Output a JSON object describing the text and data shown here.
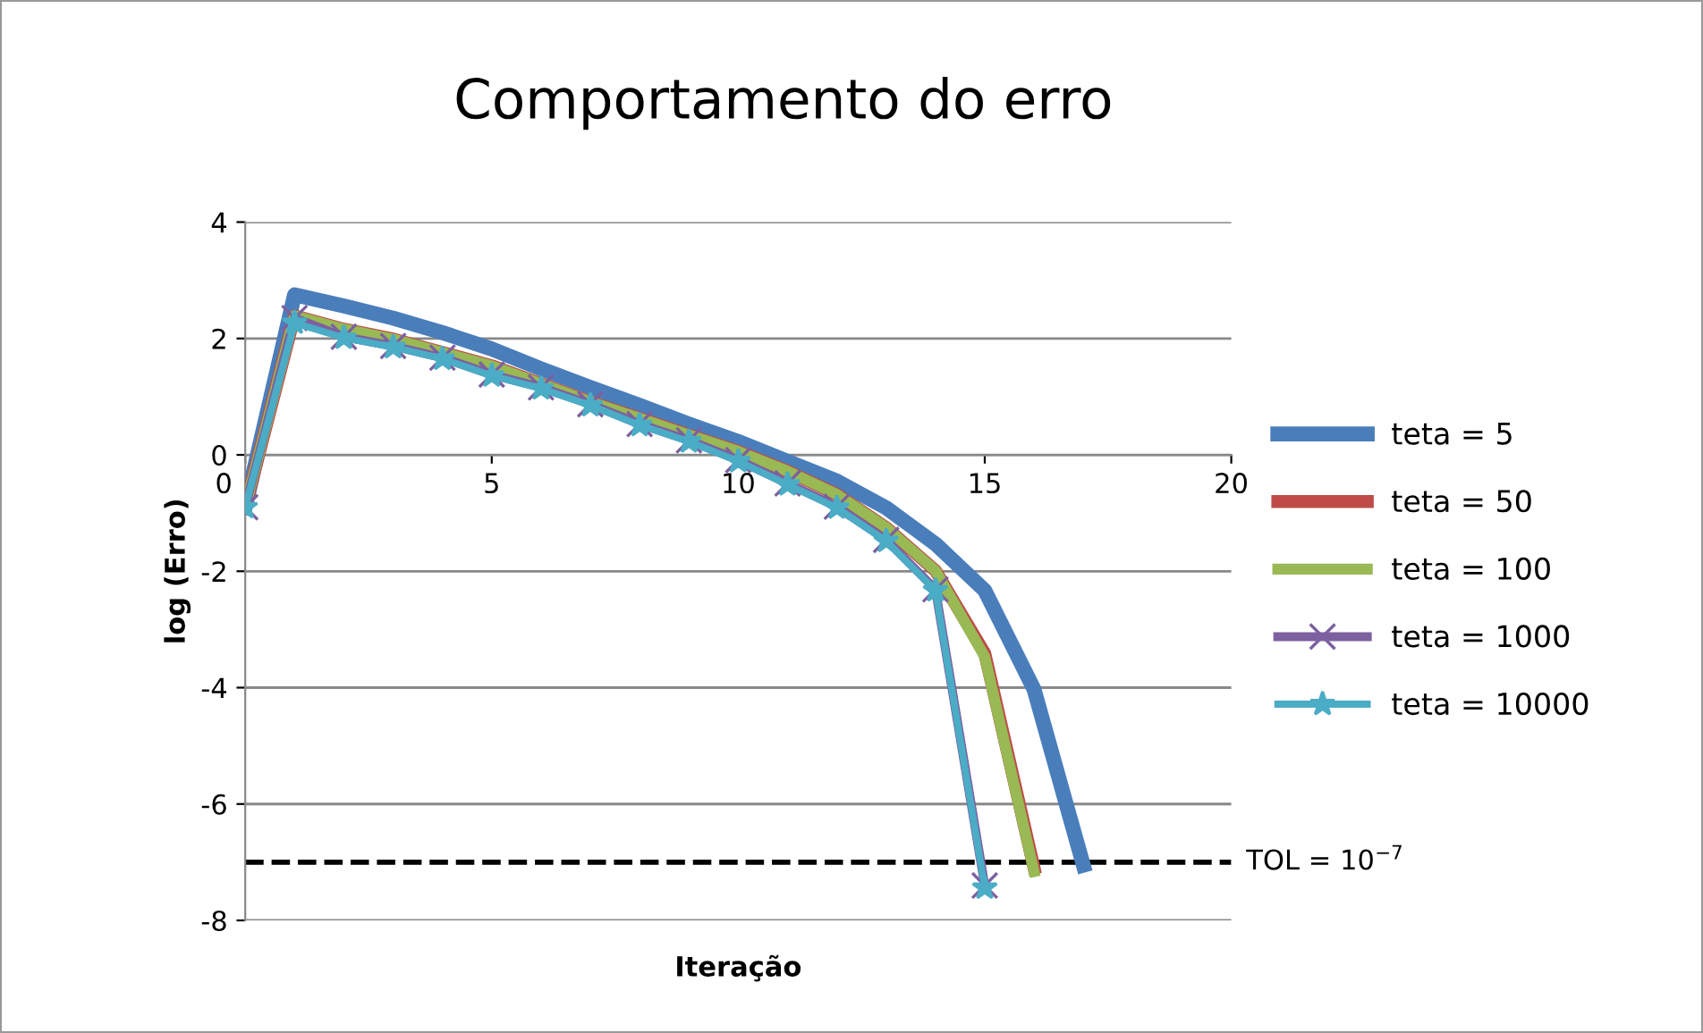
{
  "chart_data": {
    "type": "line",
    "title": "Comportamento do erro",
    "xlabel": "Iteração",
    "ylabel": "log (Erro)",
    "x": [
      0,
      1,
      2,
      3,
      4,
      5,
      6,
      7,
      8,
      9,
      10,
      11,
      12,
      13,
      14,
      15,
      16,
      17
    ],
    "series": [
      {
        "name": "teta = 5",
        "color": "#4a7ebb",
        "marker": "none",
        "values": [
          -0.9,
          2.75,
          2.56,
          2.35,
          2.1,
          1.82,
          1.48,
          1.16,
          0.85,
          0.53,
          0.23,
          -0.11,
          -0.45,
          -0.91,
          -1.53,
          -2.33,
          -4.03,
          -7.05
        ]
      },
      {
        "name": "teta = 50",
        "color": "#be4b48",
        "marker": "none",
        "values": [
          -0.9,
          2.39,
          2.16,
          1.99,
          1.76,
          1.53,
          1.22,
          0.91,
          0.63,
          0.34,
          0.06,
          -0.28,
          -0.68,
          -1.25,
          -1.99,
          -3.41,
          -7.1,
          null
        ]
      },
      {
        "name": "teta = 100",
        "color": "#98b954",
        "marker": "none",
        "values": [
          -0.9,
          2.39,
          2.16,
          1.99,
          1.76,
          1.53,
          1.22,
          0.91,
          0.63,
          0.34,
          0.06,
          -0.28,
          -0.68,
          -1.25,
          -1.99,
          -3.47,
          -7.16,
          null
        ]
      },
      {
        "name": "teta = 1000",
        "color": "#7d60a0",
        "marker": "cross",
        "values": [
          -0.9,
          2.35,
          2.03,
          1.87,
          1.67,
          1.38,
          1.16,
          0.87,
          0.53,
          0.25,
          -0.09,
          -0.49,
          -0.89,
          -1.46,
          -2.31,
          -7.4,
          null,
          null
        ]
      },
      {
        "name": "teta = 10000",
        "color": "#4bacc6",
        "marker": "star",
        "values": [
          -0.9,
          2.27,
          2.01,
          1.85,
          1.65,
          1.36,
          1.14,
          0.85,
          0.51,
          0.23,
          -0.11,
          -0.51,
          -0.91,
          -1.48,
          -2.33,
          -7.44,
          null,
          null
        ]
      }
    ],
    "xlim": [
      0,
      20
    ],
    "xticks": [
      0,
      5,
      10,
      15,
      20
    ],
    "ylim": [
      -8,
      4
    ],
    "yticks": [
      -8,
      -6,
      -4,
      -2,
      0,
      2,
      4
    ],
    "grid": "y",
    "legend": "right",
    "line_style": "solid",
    "ref_lines": [
      {
        "axis": "y",
        "value": -7,
        "label": "TOL = 10$^{−7}$",
        "color": "#000000",
        "line_style": "dashed"
      }
    ]
  }
}
